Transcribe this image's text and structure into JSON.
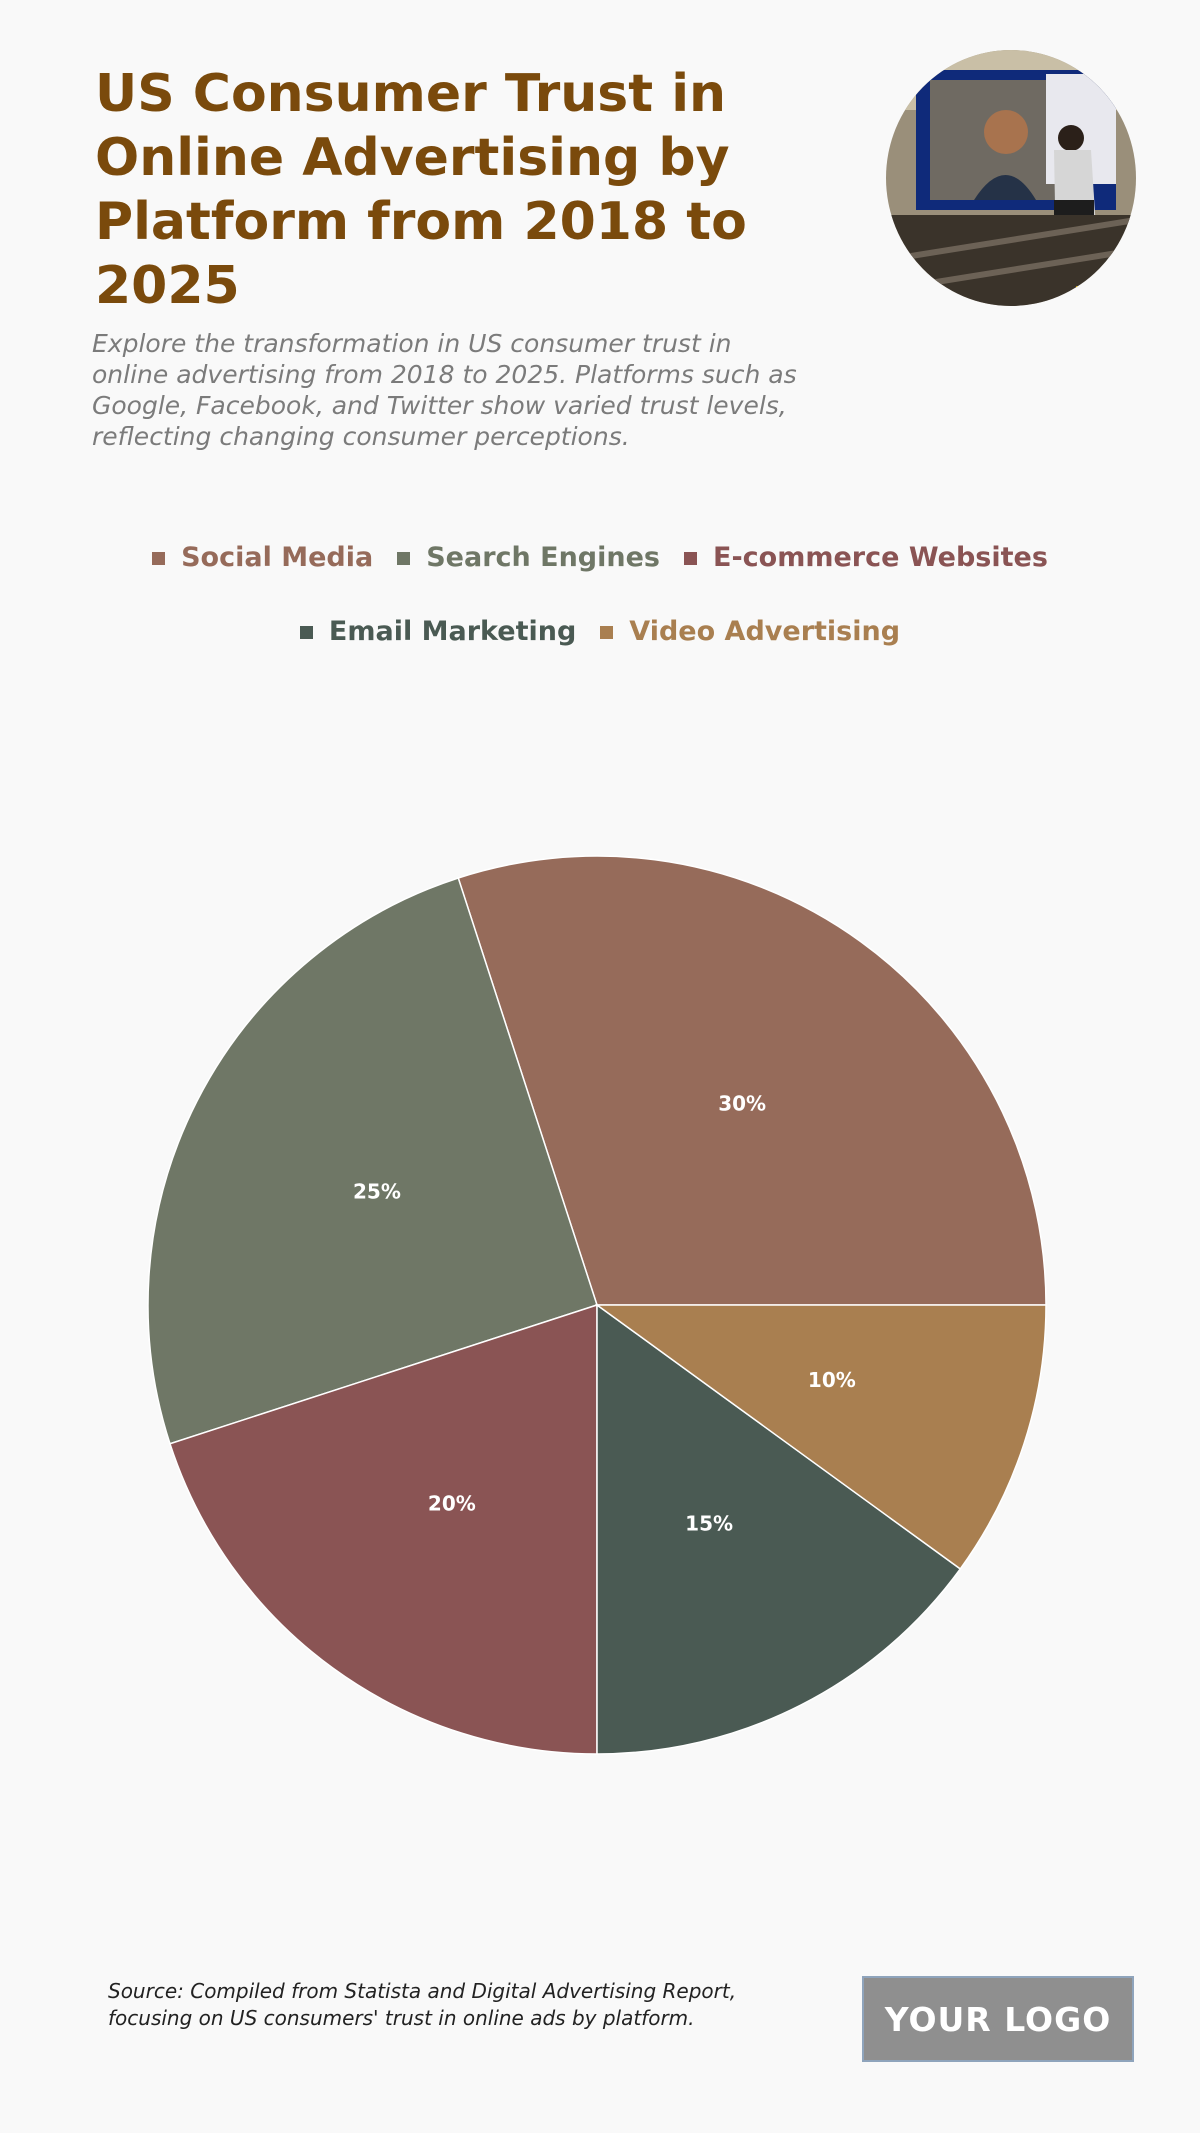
{
  "header": {
    "title": "US Consumer Trust in Online Advertising by Platform from 2018 to 2025",
    "subtitle": "Explore the transformation in US consumer trust in online advertising from 2018 to 2025. Platforms such as Google, Facebook, and Twitter show varied trust levels, reflecting changing consumer perceptions."
  },
  "chart_data": {
    "type": "pie",
    "title": "US Consumer Trust in Online Advertising by Platform from 2018 to 2025",
    "categories": [
      "Social Media",
      "Search Engines",
      "E-commerce Websites",
      "Email Marketing",
      "Video Advertising"
    ],
    "values": [
      30,
      25,
      20,
      15,
      10
    ],
    "value_labels": [
      "30%",
      "25%",
      "20%",
      "15%",
      "10%"
    ],
    "colors": [
      "#966b5a",
      "#6f7766",
      "#8a5454",
      "#4a5a53",
      "#a97f50"
    ],
    "legend_position": "top-center",
    "start_angle": "3 o'clock",
    "direction": "counterclockwise"
  },
  "footer": {
    "source": "Source: Compiled from Statista and Digital Advertising Report, focusing on US consumers' trust in online ads by platform.",
    "logo_text": "YOUR LOGO"
  }
}
